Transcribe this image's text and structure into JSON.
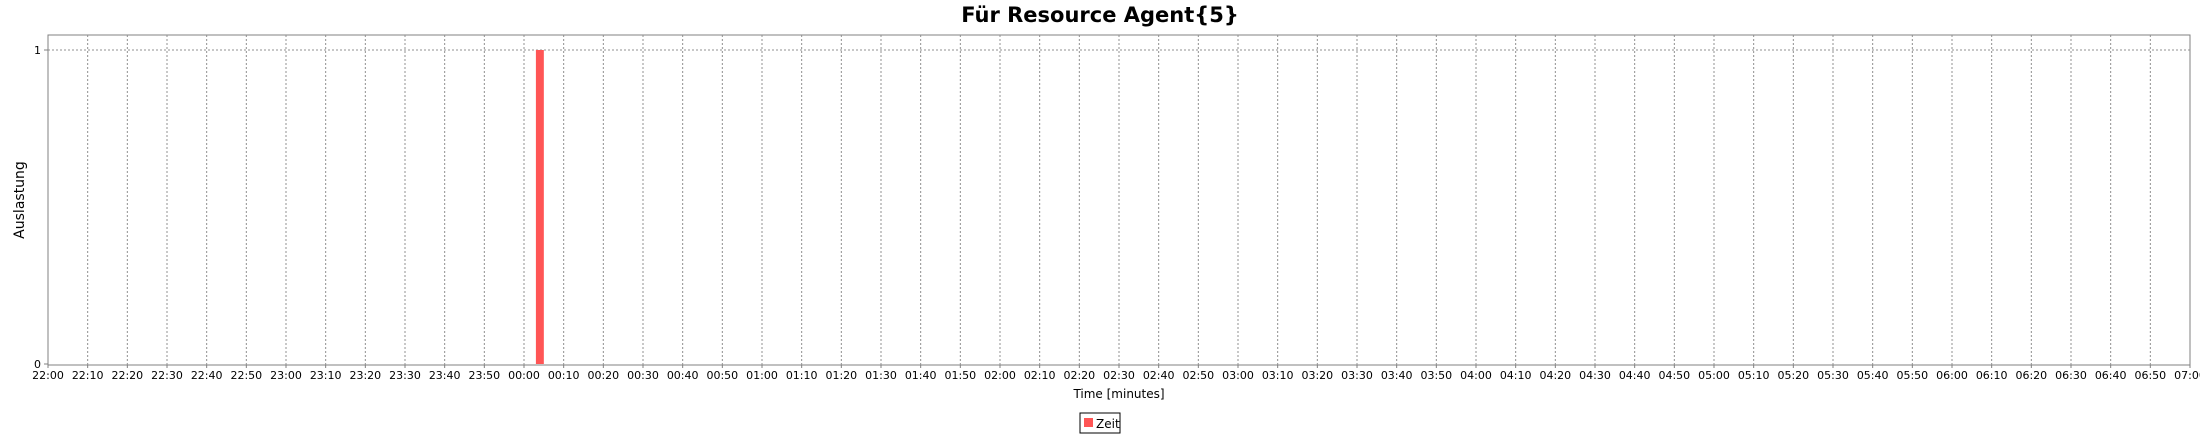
{
  "chart_data": {
    "type": "bar",
    "title": "Für Resource Agent{5}",
    "xlabel": "Time [minutes]",
    "ylabel": "Auslastung",
    "x_ticks": [
      "22:00",
      "22:10",
      "22:20",
      "22:30",
      "22:40",
      "22:50",
      "23:00",
      "23:10",
      "23:20",
      "23:30",
      "23:40",
      "23:50",
      "00:00",
      "00:10",
      "00:20",
      "00:30",
      "00:40",
      "00:50",
      "01:00",
      "01:10",
      "01:20",
      "01:30",
      "01:40",
      "01:50",
      "02:00",
      "02:10",
      "02:20",
      "02:30",
      "02:40",
      "02:50",
      "03:00",
      "03:10",
      "03:20",
      "03:30",
      "03:40",
      "03:50",
      "04:00",
      "04:10",
      "04:20",
      "04:30",
      "04:40",
      "04:50",
      "05:00",
      "05:10",
      "05:20",
      "05:30",
      "05:40",
      "05:50",
      "06:00",
      "06:10",
      "06:20",
      "06:30",
      "06:40",
      "06:50",
      "07:00"
    ],
    "xlim": [
      "22:00",
      "07:00"
    ],
    "y_ticks": [
      "0",
      "1"
    ],
    "ylim": [
      0,
      1
    ],
    "grid": true,
    "legend_position": "bottom-center",
    "series": [
      {
        "name": "Zeit",
        "color": "#ff5555",
        "bars": [
          {
            "start": "00:03",
            "end": "00:05",
            "value": 1
          }
        ]
      }
    ]
  }
}
